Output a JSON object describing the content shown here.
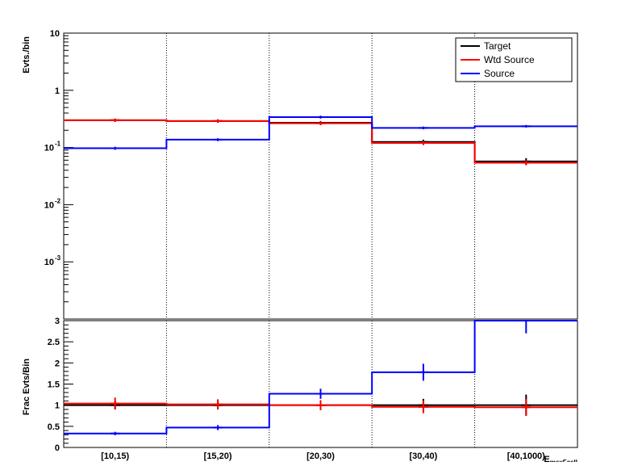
{
  "chart_data": [
    {
      "type": "line",
      "style": "step-histogram",
      "ylabel": "Evts./bin",
      "yscale": "log",
      "ylim": [
        0.0001,
        10
      ],
      "ytick_labels": {
        "major": [
          {
            "value": 10,
            "label": "10"
          },
          {
            "value": 1,
            "label": "1"
          }
        ],
        "power": [
          {
            "value": 0.1,
            "base": "10",
            "exp": "-1"
          },
          {
            "value": 0.01,
            "base": "10",
            "exp": "-2"
          },
          {
            "value": 0.001,
            "base": "10",
            "exp": "-3"
          }
        ]
      },
      "categories": [
        "[10,15)",
        "[15,20)",
        "[20,30)",
        "[30,40)",
        "[40,1000)"
      ],
      "legend": {
        "position": "top-right",
        "entries": [
          "Target",
          "Wtd Source",
          "Source"
        ]
      },
      "series": [
        {
          "name": "Target",
          "color": "#000000",
          "values": [
            0.3,
            0.29,
            0.27,
            0.125,
            0.057
          ],
          "errors": [
            0.02,
            0.02,
            0.02,
            0.012,
            0.008
          ]
        },
        {
          "name": "Wtd Source",
          "color": "#ff0000",
          "values": [
            0.3,
            0.29,
            0.265,
            0.12,
            0.054
          ],
          "errors": [
            0.02,
            0.02,
            0.02,
            0.01,
            0.005
          ]
        },
        {
          "name": "Source",
          "color": "#0000ff",
          "values": [
            0.097,
            0.137,
            0.34,
            0.22,
            0.235
          ],
          "errors": [
            0.006,
            0.008,
            0.02,
            0.012,
            0.012
          ]
        }
      ]
    },
    {
      "type": "line",
      "style": "step-histogram",
      "ylabel": "Frac Evts/Bin",
      "xlabel": "EmaxFcell",
      "ylim": [
        0,
        3
      ],
      "ytick_labels": [
        "0",
        "0.5",
        "1",
        "1.5",
        "2",
        "2.5",
        "3"
      ],
      "categories": [
        "[10,15)",
        "[15,20)",
        "[20,30)",
        "[30,40)",
        "[40,1000)"
      ],
      "series": [
        {
          "name": "Target",
          "color": "#000000",
          "values": [
            1,
            1,
            1,
            1,
            1
          ],
          "errors": [
            0.1,
            0.1,
            0.1,
            0.15,
            0.25
          ]
        },
        {
          "name": "Wtd Source",
          "color": "#ff0000",
          "values": [
            1.04,
            1.02,
            1.0,
            0.96,
            0.95
          ],
          "errors": [
            0.14,
            0.12,
            0.12,
            0.15,
            0.2
          ]
        },
        {
          "name": "Source",
          "color": "#0000ff",
          "values": [
            0.33,
            0.47,
            1.27,
            1.78,
            3.0
          ],
          "errors": [
            0.04,
            0.06,
            0.12,
            0.2,
            0.3
          ]
        }
      ]
    }
  ]
}
